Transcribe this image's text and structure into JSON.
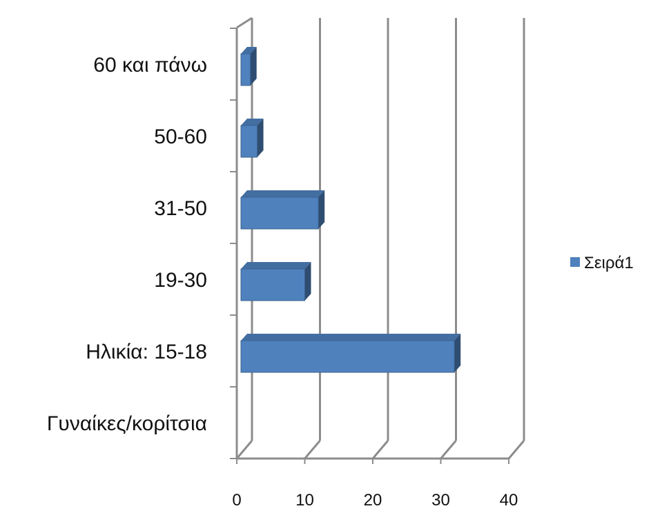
{
  "chart_data": {
    "type": "bar",
    "orientation": "horizontal",
    "style": "3d",
    "categories": [
      "Γυναίκες/κορίτσια",
      "Ηλικία: 15-18",
      "19-30",
      "31-50",
      "50-60",
      "60 και πάνω"
    ],
    "series": [
      {
        "name": "Σειρά1",
        "values": [
          null,
          32,
          10,
          12,
          3,
          2
        ],
        "color": "#4F81BD"
      }
    ],
    "xlim": [
      0,
      40
    ],
    "xticks": [
      0,
      10,
      20,
      30,
      40
    ],
    "grid": true,
    "legend": "right",
    "title": "",
    "xlabel": "",
    "ylabel": ""
  }
}
